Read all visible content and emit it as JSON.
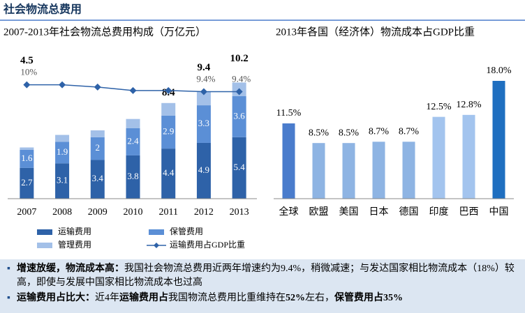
{
  "header": {
    "title": "社会物流总费用"
  },
  "chart_data": [
    {
      "type": "stacked-bar-line",
      "title": "2007-2013年社会物流总费用构成（万亿元）",
      "categories": [
        "2007",
        "2008",
        "2009",
        "2010",
        "2011",
        "2012",
        "2013"
      ],
      "series": [
        {
          "name": "运输费用",
          "color": "#2e62a8",
          "values": [
            2.7,
            3.1,
            3.4,
            3.8,
            4.4,
            4.9,
            5.4
          ],
          "labels": true
        },
        {
          "name": "保管费用",
          "color": "#5b8fd6",
          "values": [
            1.6,
            1.9,
            2.0,
            2.4,
            2.9,
            3.3,
            3.6
          ],
          "labels": true
        },
        {
          "name": "管理费用",
          "color": "#a3c0e8",
          "values": [
            0.2,
            0.6,
            0.6,
            0.8,
            1.1,
            1.2,
            1.2
          ],
          "labels": false
        },
        {
          "name": "运输费用占GDP比重",
          "color": "#2e62a8",
          "type": "line",
          "axis": "y2",
          "values": [
            10.0,
            10.0,
            9.8,
            9.5,
            9.5,
            9.4,
            9.4
          ],
          "value_labels": [
            "10%",
            null,
            null,
            null,
            null,
            "9.4%",
            "9.4%"
          ]
        }
      ],
      "totals": [
        4.5,
        null,
        null,
        null,
        8.4,
        9.4,
        10.2
      ],
      "ylim": [
        0,
        12
      ],
      "y2lim": [
        0,
        12
      ]
    },
    {
      "type": "bar",
      "title": "2013年各国（经济体）物流成本占GDP比重",
      "categories": [
        "全球",
        "欧盟",
        "美国",
        "日本",
        "德国",
        "印度",
        "巴西",
        "中国"
      ],
      "values": [
        11.5,
        8.5,
        8.5,
        8.7,
        8.7,
        12.5,
        12.8,
        18.0
      ],
      "value_labels": [
        "11.5%",
        "8.5%",
        "8.5%",
        "8.7%",
        "8.7%",
        "12.5%",
        "12.8%",
        "18.0%"
      ],
      "colors": [
        "#4a7ccc",
        "#8eb4e3",
        "#8eb4e3",
        "#8eb4e3",
        "#8eb4e3",
        "#a3c4ee",
        "#a3c4ee",
        "#1f6fc0"
      ],
      "ylim": [
        0,
        18
      ]
    }
  ],
  "bullets": [
    {
      "runs": [
        {
          "text": "增速放缓，物流成本高：",
          "bold": true
        },
        {
          "text": "我国社会物流总费用近两年增速约为9.4%，稍微减速；与发达国家相比物流成本（18%）较高，即使与发展中国家相比物流成本也过高",
          "bold": false
        }
      ]
    },
    {
      "runs": [
        {
          "text": "运输费用占比大：",
          "bold": true
        },
        {
          "text": "近4年",
          "bold": false
        },
        {
          "text": "运输费用占",
          "bold": true
        },
        {
          "text": "我国物流总费用比重维持在",
          "bold": false
        },
        {
          "text": "52%",
          "bold": true
        },
        {
          "text": "左右，",
          "bold": false
        },
        {
          "text": "保管费用占35%",
          "bold": true
        }
      ]
    }
  ]
}
